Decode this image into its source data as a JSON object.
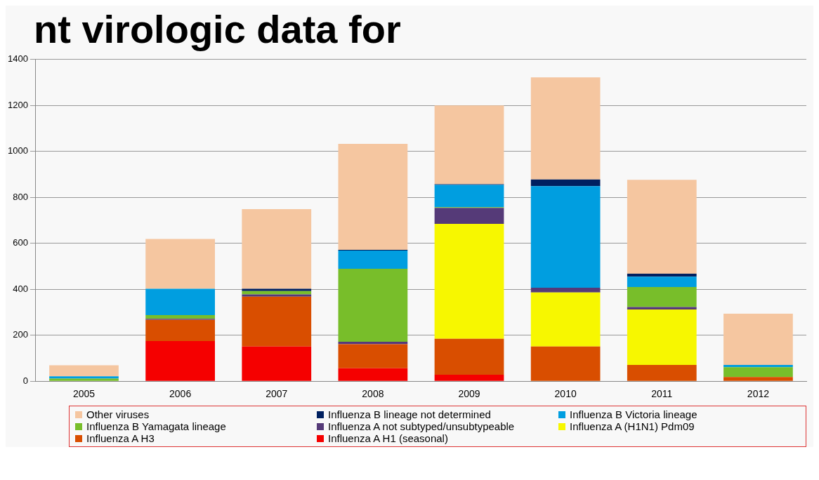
{
  "chart_data": {
    "type": "bar",
    "title": "nt virologic data for",
    "stacked": true,
    "categories": [
      "2005",
      "2006",
      "2007",
      "2008",
      "2009",
      "2010",
      "2011",
      "2012"
    ],
    "series": [
      {
        "name": "Influenza A H1 (seasonal)",
        "color": "#f50000",
        "values": [
          0,
          175,
          151,
          56,
          28,
          0,
          0,
          0
        ]
      },
      {
        "name": "Influenza A H3",
        "color": "#d94e00",
        "values": [
          0,
          92,
          217,
          105,
          157,
          151,
          71,
          18
        ]
      },
      {
        "name": "Influenza A (H1N1) Pdm09",
        "color": "#f7f700",
        "values": [
          0,
          0,
          0,
          0,
          500,
          235,
          241,
          0
        ]
      },
      {
        "name": "Influenza A not subtyped/unsubtypeable",
        "color": "#553a78",
        "values": [
          0,
          5,
          10,
          11,
          69,
          21,
          11,
          0
        ]
      },
      {
        "name": "Influenza B Yamagata lineage",
        "color": "#78be2a",
        "values": [
          11,
          16,
          14,
          317,
          3,
          0,
          87,
          43
        ]
      },
      {
        "name": "Influenza B Victoria lineage",
        "color": "#009ee0",
        "values": [
          10,
          114,
          0,
          80,
          97,
          442,
          45,
          10
        ]
      },
      {
        "name": "Influenza B lineage not determined",
        "color": "#002060",
        "values": [
          0,
          0,
          10,
          3,
          3,
          29,
          13,
          0
        ]
      },
      {
        "name": "Other viruses",
        "color": "#f5c6a0",
        "values": [
          48,
          217,
          347,
          461,
          343,
          444,
          408,
          223
        ]
      }
    ],
    "ylim": [
      0,
      1400
    ],
    "yticks": [
      0,
      200,
      400,
      600,
      800,
      1000,
      1200,
      1400
    ],
    "grid": "y",
    "legend": "bottom"
  }
}
